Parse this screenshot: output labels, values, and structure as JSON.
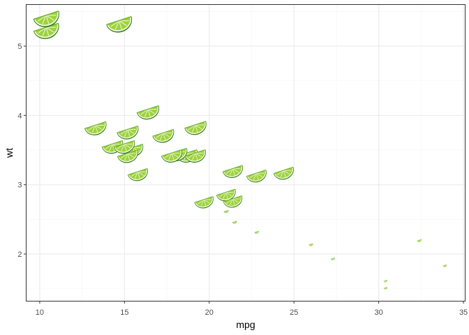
{
  "chart_data": {
    "type": "scatter",
    "title": "",
    "xlabel": "mpg",
    "ylabel": "wt",
    "xlim": [
      9.2,
      35.1
    ],
    "ylim": [
      1.32,
      5.6
    ],
    "x_ticks": [
      "10",
      "15",
      "20",
      "25",
      "30",
      "35"
    ],
    "y_ticks": [
      "2",
      "3",
      "4",
      "5"
    ],
    "grid": true,
    "legend": "none",
    "marker": "lime-wedge-icon",
    "marker_size_mapped_to": "wt",
    "colors": {
      "panel_border": "#333333",
      "grid_major": "#ebebeb",
      "grid_minor": "#f5f5f5",
      "lime_peel": "#3f8f12",
      "lime_flesh": "#9fd23c",
      "lime_pith": "#f3fbe6"
    },
    "series": [
      {
        "x": [
          21.0,
          21.0,
          22.8,
          21.4,
          18.7,
          18.1,
          14.3,
          24.4,
          22.8,
          19.2,
          17.8,
          16.4,
          17.3,
          15.2,
          10.4,
          10.4,
          14.7,
          32.4,
          30.4,
          33.9,
          21.5,
          15.5,
          15.2,
          13.3,
          19.2,
          27.3,
          26.0,
          30.4,
          15.8,
          19.7,
          15.0,
          21.4
        ],
        "y": [
          2.62,
          2.875,
          2.32,
          3.215,
          3.44,
          3.46,
          3.57,
          3.19,
          3.15,
          3.44,
          3.44,
          4.07,
          3.73,
          3.78,
          5.25,
          5.424,
          5.345,
          2.2,
          1.615,
          1.835,
          2.465,
          3.52,
          3.435,
          3.84,
          3.845,
          1.935,
          2.14,
          1.513,
          3.17,
          2.77,
          3.57,
          2.78
        ]
      }
    ]
  }
}
